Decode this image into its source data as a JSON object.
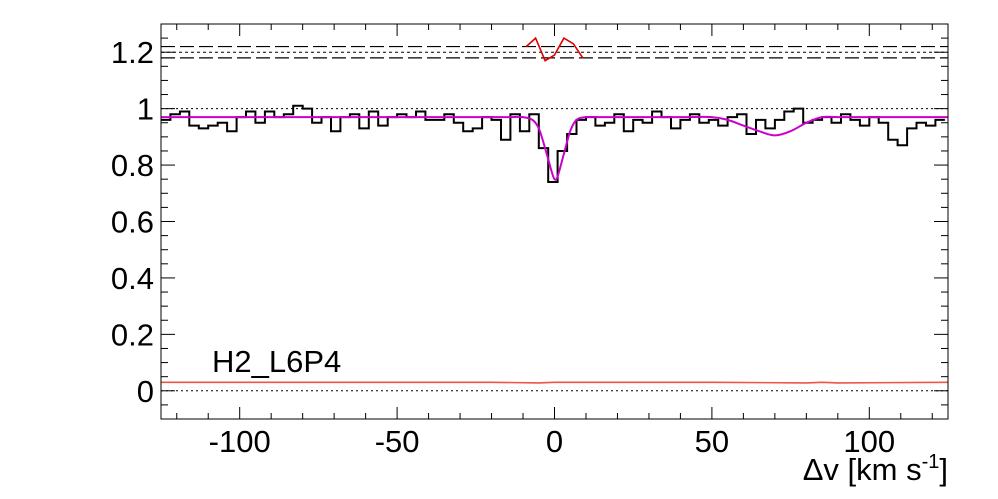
{
  "chart_data": {
    "type": "line",
    "title": "",
    "xlabel": "Δv [km s",
    "xlabel_sup": "-1",
    "xlabel_close": "]",
    "ylabel": "",
    "xlim": [
      -125,
      125
    ],
    "ylim": [
      -0.1,
      1.3
    ],
    "x_ticks": [
      -100,
      -50,
      0,
      50,
      100
    ],
    "x_tick_labels": [
      "-100",
      "-50",
      "0",
      "50",
      "100"
    ],
    "y_ticks": [
      0,
      0.2,
      0.4,
      0.6,
      0.8,
      1,
      1.2
    ],
    "y_tick_labels": [
      "0",
      "0.2",
      "0.4",
      "0.6",
      "0.8",
      "1",
      "1.2"
    ],
    "annotation": "H2_L6P4",
    "grid": false,
    "colors": {
      "spectrum": "#000000",
      "model": "#cc00cc",
      "residuals": "#dd0000",
      "error": "#ee5544",
      "reference": "#000000"
    },
    "reference_levels": {
      "continuum": 1.0,
      "zero": 0.0,
      "residual_center": 1.2,
      "residual_band": [
        1.18,
        1.22
      ]
    },
    "series": [
      {
        "role": "spectrum",
        "style": "step",
        "x": [
          -125,
          -122,
          -119,
          -116,
          -113,
          -110,
          -107,
          -104,
          -101,
          -98,
          -95,
          -92,
          -89,
          -86,
          -83,
          -80,
          -77,
          -74,
          -71,
          -68,
          -65,
          -62,
          -59,
          -56,
          -53,
          -50,
          -47,
          -44,
          -41,
          -38,
          -35,
          -32,
          -29,
          -26,
          -23,
          -20,
          -17,
          -14,
          -11,
          -8,
          -5,
          -2,
          1,
          4,
          7,
          10,
          13,
          16,
          19,
          22,
          25,
          28,
          31,
          34,
          37,
          40,
          43,
          46,
          49,
          52,
          55,
          58,
          61,
          64,
          67,
          70,
          73,
          76,
          79,
          82,
          85,
          88,
          91,
          94,
          97,
          100,
          103,
          106,
          109,
          112,
          115,
          118,
          121
        ],
        "y": [
          0.96,
          0.98,
          0.99,
          0.94,
          0.93,
          0.94,
          0.95,
          0.92,
          0.97,
          0.99,
          0.95,
          0.99,
          0.97,
          0.98,
          1.01,
          1.0,
          0.95,
          0.97,
          0.92,
          0.97,
          0.98,
          0.93,
          0.99,
          0.94,
          0.97,
          0.98,
          0.97,
          0.99,
          0.96,
          0.96,
          0.98,
          0.95,
          0.92,
          0.93,
          0.97,
          0.96,
          0.89,
          0.98,
          0.92,
          0.98,
          0.86,
          0.74,
          0.85,
          0.91,
          0.96,
          0.97,
          0.94,
          0.95,
          0.98,
          0.92,
          0.96,
          0.95,
          0.99,
          0.97,
          0.93,
          0.96,
          0.98,
          0.95,
          0.96,
          0.94,
          0.97,
          0.98,
          0.91,
          0.96,
          0.93,
          0.96,
          0.99,
          1.0,
          0.95,
          0.96,
          0.97,
          0.95,
          0.98,
          0.96,
          0.94,
          0.97,
          0.95,
          0.89,
          0.87,
          0.93,
          0.95,
          0.94,
          0.96
        ]
      },
      {
        "role": "model",
        "style": "smooth",
        "x": [
          -125,
          -100,
          -75,
          -50,
          -25,
          -15,
          -10,
          -7,
          -5,
          -3,
          -1,
          0,
          1,
          3,
          5,
          7,
          10,
          15,
          25,
          40,
          50,
          55,
          60,
          65,
          70,
          75,
          80,
          85,
          90,
          100,
          125
        ],
        "y": [
          0.97,
          0.97,
          0.97,
          0.97,
          0.97,
          0.97,
          0.97,
          0.96,
          0.93,
          0.86,
          0.78,
          0.75,
          0.76,
          0.84,
          0.92,
          0.96,
          0.97,
          0.97,
          0.97,
          0.97,
          0.97,
          0.96,
          0.94,
          0.92,
          0.905,
          0.92,
          0.95,
          0.97,
          0.97,
          0.97,
          0.97
        ]
      },
      {
        "role": "residuals",
        "style": "line",
        "x": [
          -9,
          -6,
          -3,
          0,
          3,
          6,
          9
        ],
        "y": [
          1.22,
          1.25,
          1.17,
          1.19,
          1.25,
          1.23,
          1.18
        ]
      },
      {
        "role": "error",
        "style": "line",
        "x": [
          -125,
          -20,
          -5,
          0,
          5,
          50,
          80,
          85,
          90,
          125
        ],
        "y": [
          0.03,
          0.03,
          0.028,
          0.03,
          0.03,
          0.03,
          0.028,
          0.03,
          0.028,
          0.03
        ]
      }
    ]
  }
}
